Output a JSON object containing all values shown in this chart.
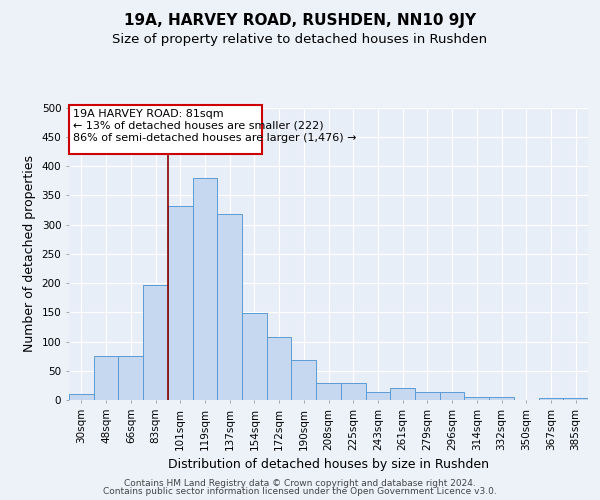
{
  "title": "19A, HARVEY ROAD, RUSHDEN, NN10 9JY",
  "subtitle": "Size of property relative to detached houses in Rushden",
  "xlabel": "Distribution of detached houses by size in Rushden",
  "ylabel": "Number of detached properties",
  "footer_line1": "Contains HM Land Registry data © Crown copyright and database right 2024.",
  "footer_line2": "Contains public sector information licensed under the Open Government Licence v3.0.",
  "bar_labels": [
    "30sqm",
    "48sqm",
    "66sqm",
    "83sqm",
    "101sqm",
    "119sqm",
    "137sqm",
    "154sqm",
    "172sqm",
    "190sqm",
    "208sqm",
    "225sqm",
    "243sqm",
    "261sqm",
    "279sqm",
    "296sqm",
    "314sqm",
    "332sqm",
    "350sqm",
    "367sqm",
    "385sqm"
  ],
  "bar_values": [
    10,
    76,
    76,
    197,
    332,
    380,
    318,
    149,
    108,
    69,
    29,
    29,
    14,
    20,
    13,
    13,
    5,
    5,
    0,
    3,
    3
  ],
  "bar_color": "#c5d8f0",
  "bar_edge_color": "#5b9bd5",
  "ylim": [
    0,
    500
  ],
  "yticks": [
    0,
    50,
    100,
    150,
    200,
    250,
    300,
    350,
    400,
    450,
    500
  ],
  "property_label": "19A HARVEY ROAD: 81sqm",
  "annotation_line1": "← 13% of detached houses are smaller (222)",
  "annotation_line2": "86% of semi-detached houses are larger (1,476) →",
  "vline_x": 3.5,
  "background_color": "#edf2f9",
  "plot_background_color": "#e8eef8",
  "grid_color": "#ffffff",
  "title_fontsize": 11,
  "subtitle_fontsize": 9.5,
  "axis_label_fontsize": 9,
  "tick_fontsize": 7.5,
  "annotation_fontsize": 8,
  "footer_fontsize": 6.5
}
